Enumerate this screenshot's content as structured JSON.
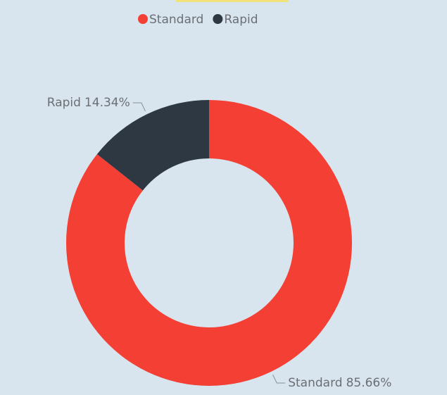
{
  "chart_data": {
    "type": "donut",
    "categories": [
      "Standard",
      "Rapid"
    ],
    "values": [
      85.66,
      14.34
    ],
    "value_labels": [
      "85.66%",
      "14.34%"
    ],
    "colors": [
      "#f43f34",
      "#2e3843"
    ],
    "legend": "top"
  }
}
